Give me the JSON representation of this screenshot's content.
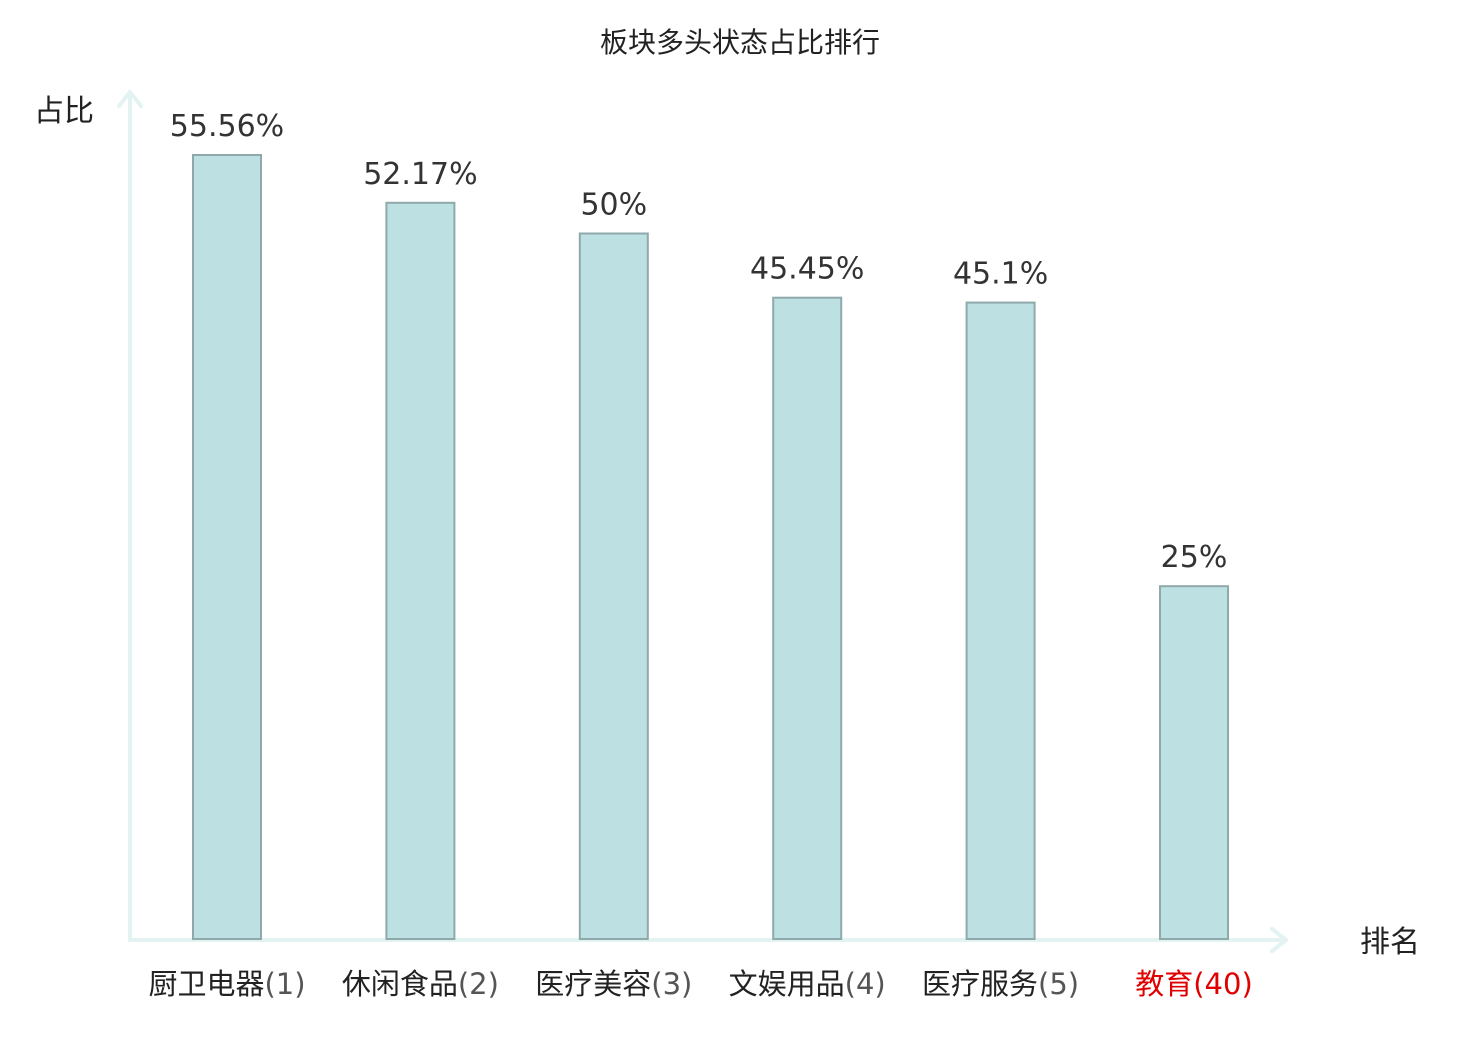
{
  "chart_data": {
    "type": "bar",
    "title": "板块多头状态占比排行",
    "ylabel": "占比",
    "xlabel": "排名",
    "categories": [
      {
        "name": "厨卫电器",
        "rank": "(1)",
        "highlight": false
      },
      {
        "name": "休闲食品",
        "rank": "(2)",
        "highlight": false
      },
      {
        "name": "医疗美容",
        "rank": "(3)",
        "highlight": false
      },
      {
        "name": "文娱用品",
        "rank": "(4)",
        "highlight": false
      },
      {
        "name": "医疗服务",
        "rank": "(5)",
        "highlight": false
      },
      {
        "name": "教育",
        "rank": "(40)",
        "highlight": true
      }
    ],
    "values": [
      55.56,
      52.17,
      50,
      45.45,
      45.1,
      25
    ],
    "value_labels": [
      "55.56%",
      "52.17%",
      "50%",
      "45.45%",
      "45.1%",
      "25%"
    ],
    "ylim": [
      0,
      60
    ],
    "grid": false,
    "legend": "none",
    "colors": {
      "bar_fill": "#bde0e3",
      "bar_stroke": "#8fa9ab",
      "axis": "#e2f3f1",
      "text": "#222222",
      "value_label": "#333333",
      "rank_text": "#555555",
      "highlight": "#e00000"
    }
  }
}
